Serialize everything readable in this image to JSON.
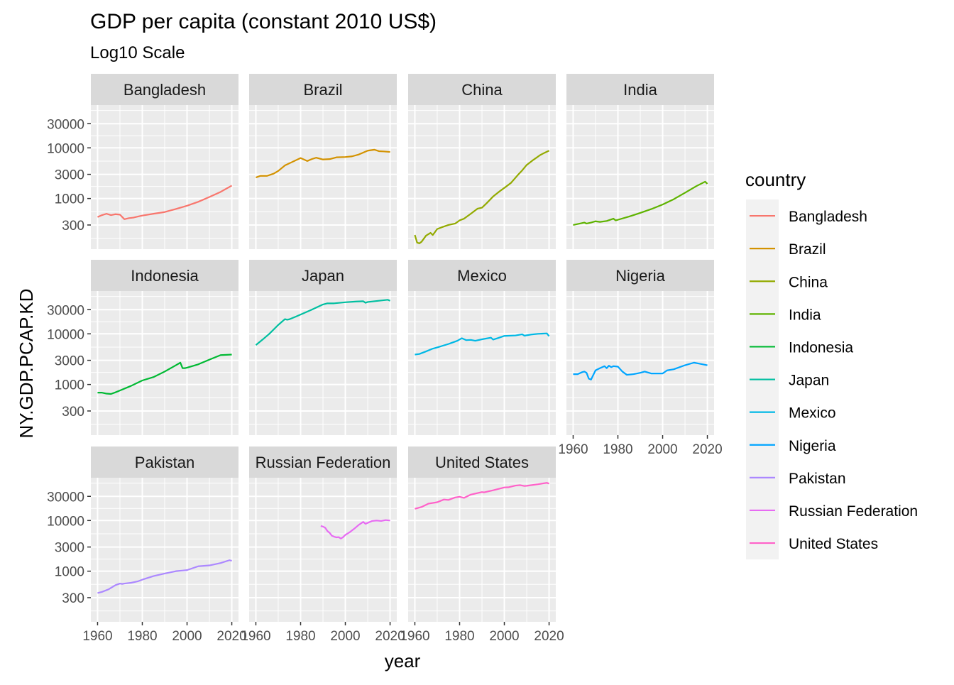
{
  "chart_data": {
    "type": "line",
    "title": "GDP per capita (constant 2010 US$)",
    "subtitle": "Log10 Scale",
    "xlabel": "year",
    "ylabel": "NY.GDP.PCAP.KD",
    "y_scale": "log10",
    "xlim": [
      1957,
      2023
    ],
    "ylim": [
      100,
      70000
    ],
    "x_ticks": [
      1960,
      1980,
      2000,
      2020
    ],
    "x_tick_labels": [
      "1960",
      "1980",
      "2000",
      "2020"
    ],
    "y_ticks": [
      300,
      1000,
      3000,
      10000,
      30000
    ],
    "y_tick_labels": [
      "300",
      "1000",
      "3000",
      "10000",
      "30000"
    ],
    "grid": true,
    "facet_layout": "wrap 4 columns",
    "legend": {
      "title": "country",
      "placement": "right",
      "entries": [
        "Bangladesh",
        "Brazil",
        "China",
        "India",
        "Indonesia",
        "Japan",
        "Mexico",
        "Nigeria",
        "Pakistan",
        "Russian Federation",
        "United States"
      ]
    },
    "series": [
      {
        "name": "Bangladesh",
        "color": "#F8766D",
        "x": [
          1960,
          1962,
          1964,
          1966,
          1968,
          1970,
          1972,
          1974,
          1976,
          1978,
          1980,
          1985,
          1990,
          1995,
          2000,
          2005,
          2010,
          2015,
          2020
        ],
        "y": [
          430,
          470,
          500,
          470,
          490,
          480,
          390,
          410,
          420,
          440,
          460,
          500,
          540,
          620,
          720,
          860,
          1070,
          1350,
          1800
        ]
      },
      {
        "name": "Brazil",
        "color": "#D39200",
        "x": [
          1960,
          1962,
          1965,
          1968,
          1970,
          1973,
          1976,
          1980,
          1983,
          1985,
          1987,
          1990,
          1993,
          1996,
          2000,
          2003,
          2006,
          2010,
          2013,
          2015,
          2017,
          2020
        ],
        "y": [
          2600,
          2800,
          2800,
          3100,
          3500,
          4500,
          5200,
          6300,
          5500,
          6000,
          6400,
          5900,
          6000,
          6500,
          6600,
          6800,
          7400,
          8800,
          9200,
          8600,
          8500,
          8300
        ]
      },
      {
        "name": "China",
        "color": "#93AA00",
        "x": [
          1960,
          1961,
          1962,
          1963,
          1965,
          1967,
          1968,
          1970,
          1972,
          1975,
          1978,
          1980,
          1982,
          1985,
          1988,
          1990,
          1992,
          1995,
          1998,
          2000,
          2003,
          2006,
          2008,
          2010,
          2013,
          2016,
          2018,
          2020
        ],
        "y": [
          190,
          135,
          130,
          140,
          185,
          210,
          190,
          250,
          270,
          300,
          320,
          370,
          400,
          500,
          630,
          660,
          800,
          1100,
          1400,
          1620,
          2040,
          2900,
          3600,
          4600,
          5800,
          7200,
          8000,
          8800
        ]
      },
      {
        "name": "India",
        "color": "#5EB300",
        "x": [
          1960,
          1963,
          1965,
          1966,
          1968,
          1970,
          1972,
          1975,
          1978,
          1979,
          1980,
          1985,
          1990,
          1995,
          2000,
          2005,
          2010,
          2015,
          2019,
          2020
        ],
        "y": [
          300,
          320,
          335,
          320,
          335,
          355,
          345,
          360,
          400,
          370,
          380,
          440,
          520,
          620,
          760,
          970,
          1300,
          1750,
          2150,
          1950
        ]
      },
      {
        "name": "Indonesia",
        "color": "#00B933",
        "x": [
          1960,
          1962,
          1964,
          1966,
          1968,
          1970,
          1975,
          1980,
          1985,
          1990,
          1995,
          1997,
          1998,
          1999,
          2000,
          2005,
          2010,
          2015,
          2020
        ],
        "y": [
          690,
          690,
          660,
          650,
          700,
          760,
          940,
          1200,
          1400,
          1800,
          2400,
          2700,
          2100,
          2100,
          2150,
          2500,
          3100,
          3800,
          3900
        ]
      },
      {
        "name": "Japan",
        "color": "#00BFA0",
        "x": [
          1960,
          1963,
          1966,
          1970,
          1973,
          1974,
          1975,
          1978,
          1980,
          1985,
          1990,
          1992,
          1995,
          2000,
          2005,
          2008,
          2009,
          2010,
          2015,
          2019,
          2020
        ],
        "y": [
          6000,
          7700,
          10000,
          15000,
          19500,
          19000,
          19400,
          22000,
          24000,
          30000,
          38000,
          40000,
          40000,
          42000,
          43500,
          44000,
          41000,
          42500,
          45000,
          47000,
          45000
        ]
      },
      {
        "name": "Mexico",
        "color": "#00B8E5",
        "x": [
          1960,
          1962,
          1965,
          1968,
          1970,
          1975,
          1979,
          1981,
          1983,
          1985,
          1987,
          1990,
          1994,
          1995,
          1997,
          2000,
          2005,
          2008,
          2009,
          2012,
          2015,
          2019,
          2020
        ],
        "y": [
          3900,
          4000,
          4500,
          5100,
          5400,
          6300,
          7300,
          8200,
          7500,
          7600,
          7300,
          7800,
          8400,
          7700,
          8200,
          9100,
          9300,
          9800,
          9200,
          9700,
          10000,
          10200,
          9000
        ]
      },
      {
        "name": "Nigeria",
        "color": "#00A5FF",
        "x": [
          1960,
          1962,
          1964,
          1965,
          1966,
          1967,
          1968,
          1970,
          1972,
          1974,
          1975,
          1976,
          1977,
          1978,
          1980,
          1982,
          1984,
          1987,
          1990,
          1992,
          1995,
          2000,
          2002,
          2005,
          2010,
          2014,
          2016,
          2020
        ],
        "y": [
          1600,
          1600,
          1750,
          1800,
          1700,
          1300,
          1250,
          1900,
          2100,
          2300,
          2100,
          2350,
          2200,
          2300,
          2250,
          1800,
          1550,
          1600,
          1700,
          1800,
          1650,
          1650,
          1900,
          2000,
          2400,
          2700,
          2600,
          2400
        ]
      },
      {
        "name": "Pakistan",
        "color": "#AC88FF",
        "x": [
          1960,
          1962,
          1965,
          1968,
          1970,
          1971,
          1972,
          1975,
          1978,
          1980,
          1985,
          1990,
          1995,
          2000,
          2005,
          2010,
          2015,
          2019,
          2020
        ],
        "y": [
          370,
          390,
          440,
          530,
          570,
          560,
          570,
          590,
          630,
          680,
          800,
          900,
          1000,
          1050,
          1250,
          1300,
          1450,
          1650,
          1600
        ]
      },
      {
        "name": "Russian Federation",
        "color": "#E76BF3",
        "x": [
          1989,
          1990,
          1991,
          1992,
          1993,
          1994,
          1995,
          1996,
          1997,
          1998,
          1999,
          2000,
          2002,
          2004,
          2006,
          2008,
          2009,
          2010,
          2012,
          2014,
          2016,
          2018,
          2020
        ],
        "y": [
          7800,
          7600,
          7200,
          6200,
          5700,
          5000,
          4800,
          4650,
          4700,
          4400,
          4700,
          5200,
          5900,
          6900,
          8200,
          9400,
          8600,
          9000,
          9800,
          10000,
          9800,
          10200,
          10000
        ]
      },
      {
        "name": "United States",
        "color": "#FF61C9",
        "x": [
          1960,
          1963,
          1966,
          1970,
          1973,
          1975,
          1978,
          1980,
          1982,
          1985,
          1990,
          1991,
          1995,
          2000,
          2002,
          2005,
          2007,
          2009,
          2010,
          2015,
          2019,
          2020
        ],
        "y": [
          17000,
          18500,
          21500,
          23000,
          26000,
          25500,
          28500,
          29500,
          28000,
          32500,
          36500,
          36000,
          39500,
          45000,
          45500,
          49000,
          50000,
          48000,
          48500,
          52000,
          55500,
          53500
        ]
      }
    ]
  }
}
